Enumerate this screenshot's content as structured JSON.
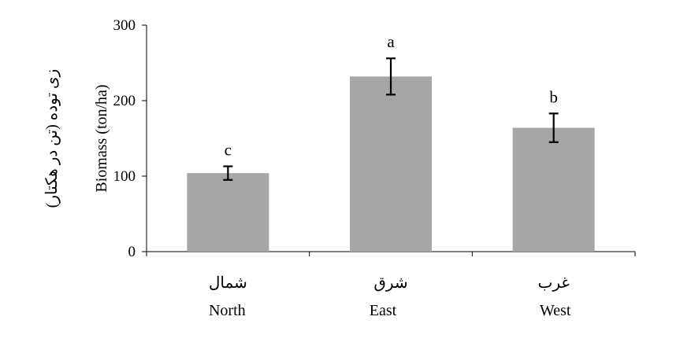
{
  "chart_data": {
    "type": "bar",
    "categories": [
      {
        "fa": "شمال",
        "en": "North"
      },
      {
        "fa": "شرق",
        "en": "East"
      },
      {
        "fa": "غرب",
        "en": "West"
      }
    ],
    "values": [
      104,
      232,
      164
    ],
    "error": [
      9,
      24,
      19
    ],
    "significance": [
      "c",
      "a",
      "b"
    ],
    "ylabel_en": "Biomass (ton/ha)",
    "ylabel_fa": "زی توده (تن در هکتار)",
    "yticks": [
      0,
      100,
      200,
      300
    ],
    "ylim": [
      0,
      300
    ],
    "grid": false,
    "bar_color": "#a6a6a6",
    "axis_color": "#000000"
  }
}
